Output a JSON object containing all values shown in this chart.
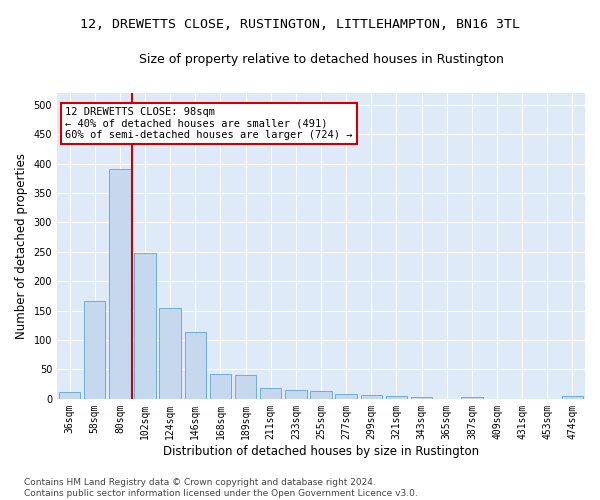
{
  "title": "12, DREWETTS CLOSE, RUSTINGTON, LITTLEHAMPTON, BN16 3TL",
  "subtitle": "Size of property relative to detached houses in Rustington",
  "xlabel": "Distribution of detached houses by size in Rustington",
  "ylabel": "Number of detached properties",
  "categories": [
    "36sqm",
    "58sqm",
    "80sqm",
    "102sqm",
    "124sqm",
    "146sqm",
    "168sqm",
    "189sqm",
    "211sqm",
    "233sqm",
    "255sqm",
    "277sqm",
    "299sqm",
    "321sqm",
    "343sqm",
    "365sqm",
    "387sqm",
    "409sqm",
    "431sqm",
    "453sqm",
    "474sqm"
  ],
  "values": [
    12,
    167,
    390,
    248,
    155,
    113,
    42,
    40,
    18,
    15,
    13,
    8,
    6,
    5,
    3,
    0,
    3,
    0,
    0,
    0,
    4
  ],
  "bar_color": "#c5d8ed",
  "bar_edge_color": "#6aaed6",
  "vline_color": "#cc0000",
  "annotation_text": "12 DREWETTS CLOSE: 98sqm\n← 40% of detached houses are smaller (491)\n60% of semi-detached houses are larger (724) →",
  "annotation_box_color": "#ffffff",
  "annotation_box_edge": "#cc0000",
  "ylim": [
    0,
    520
  ],
  "yticks": [
    0,
    50,
    100,
    150,
    200,
    250,
    300,
    350,
    400,
    450,
    500
  ],
  "footer": "Contains HM Land Registry data © Crown copyright and database right 2024.\nContains public sector information licensed under the Open Government Licence v3.0.",
  "background_color": "#deeaf7",
  "grid_color": "#ffffff",
  "title_fontsize": 9.5,
  "subtitle_fontsize": 9,
  "axis_label_fontsize": 8.5,
  "tick_fontsize": 7,
  "footer_fontsize": 6.5,
  "annotation_fontsize": 7.5
}
